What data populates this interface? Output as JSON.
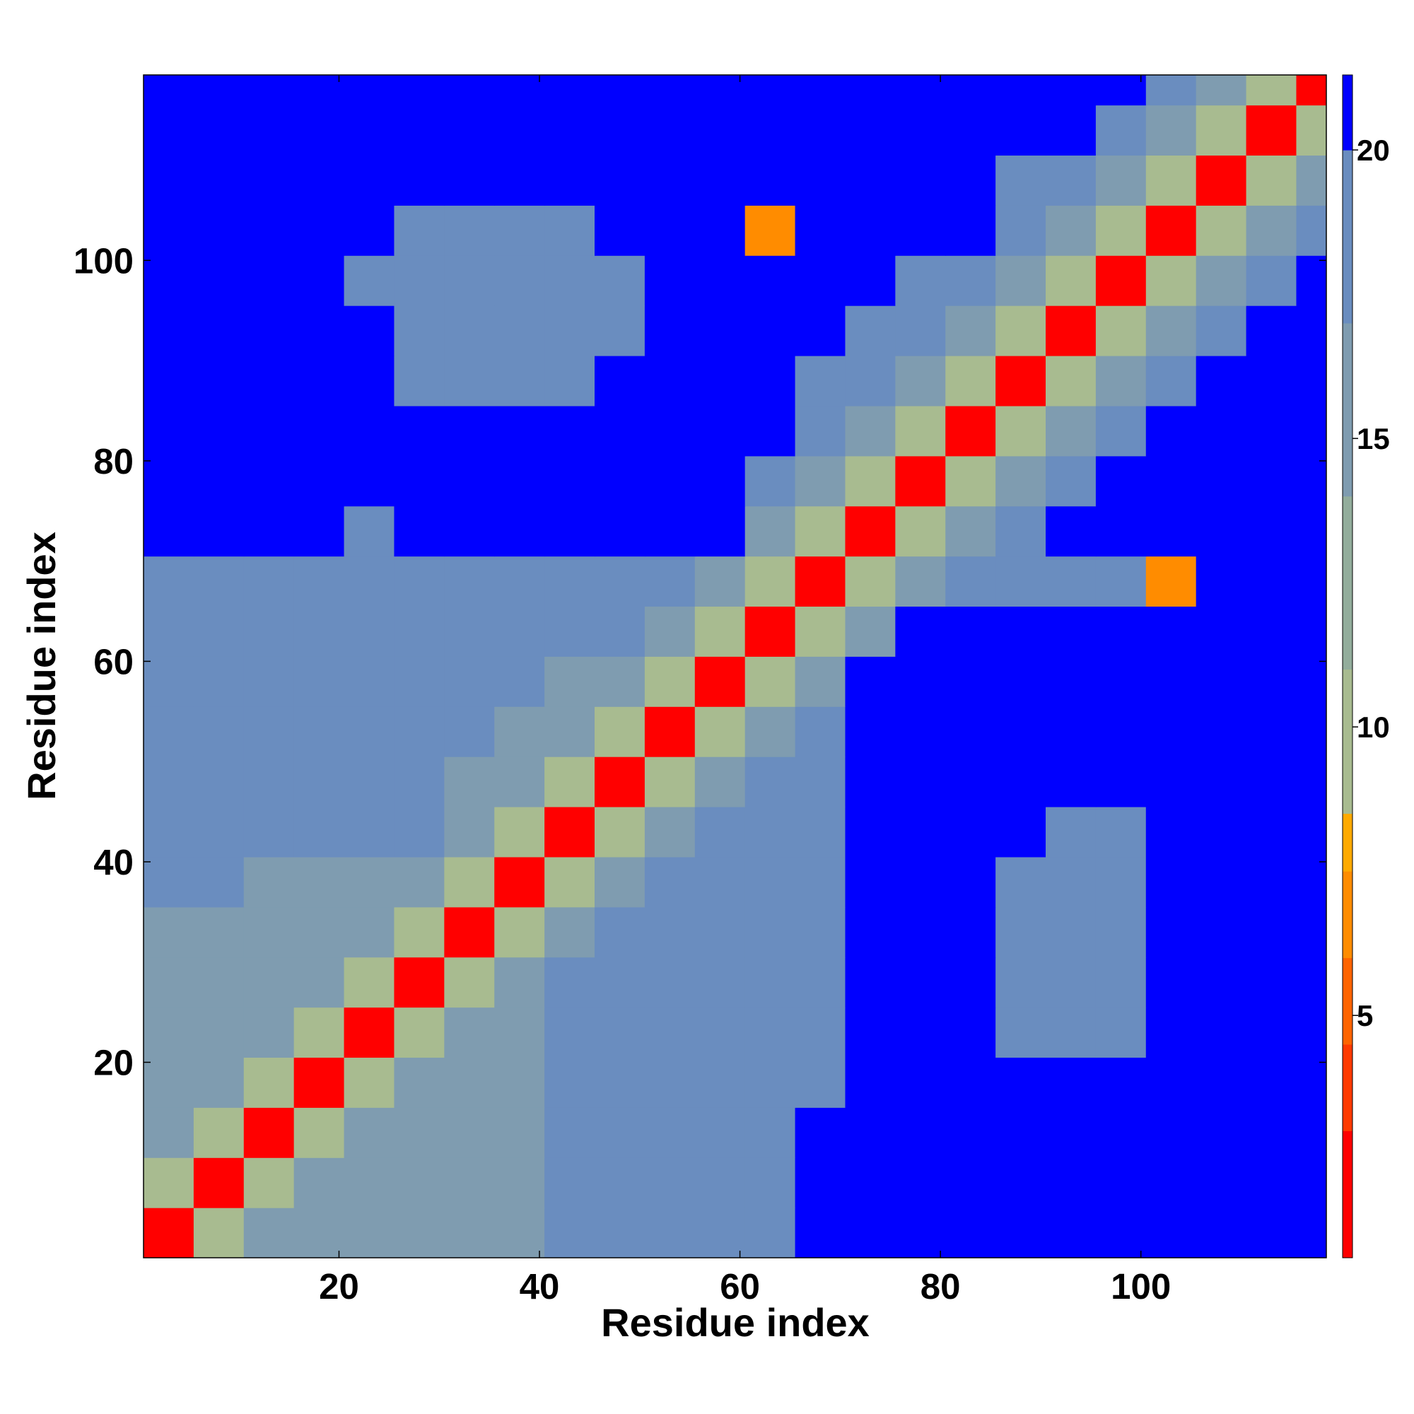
{
  "chart_data": {
    "type": "heatmap",
    "xlabel": "Residue index",
    "ylabel": "Residue index",
    "xlim": [
      0.5,
      118.5
    ],
    "ylim": [
      0.5,
      118.5
    ],
    "xticks": [
      20,
      40,
      60,
      80,
      100
    ],
    "yticks": [
      20,
      40,
      60,
      80,
      100
    ],
    "x": [
      3,
      8,
      13,
      18,
      23,
      28,
      33,
      38,
      43,
      48,
      53,
      58,
      63,
      68,
      73,
      78,
      83,
      88,
      93,
      98,
      103,
      108,
      113,
      118
    ],
    "y": [
      3,
      8,
      13,
      18,
      23,
      28,
      33,
      38,
      43,
      48,
      53,
      58,
      63,
      68,
      73,
      78,
      83,
      88,
      93,
      98,
      103,
      108,
      113,
      118
    ],
    "z": [
      [
        2,
        9,
        15,
        16,
        16,
        16,
        16,
        16,
        19,
        19,
        19,
        19,
        19,
        21,
        21,
        21,
        21,
        21,
        21,
        21,
        21,
        21,
        21,
        21
      ],
      [
        9,
        2,
        9,
        15,
        16,
        16,
        16,
        16,
        17,
        17,
        17,
        17,
        17,
        21,
        21,
        21,
        21,
        21,
        21,
        21,
        21,
        21,
        21,
        21
      ],
      [
        15,
        9,
        2,
        9,
        15,
        16,
        16,
        16,
        17,
        17,
        17,
        17,
        17,
        21,
        21,
        21,
        21,
        21,
        21,
        21,
        21,
        21,
        21,
        21
      ],
      [
        16,
        15,
        9,
        2,
        9,
        15,
        16,
        16,
        17,
        17,
        17,
        17,
        18,
        18,
        21,
        21,
        21,
        21,
        21,
        21,
        21,
        21,
        21,
        21
      ],
      [
        16,
        16,
        15,
        9,
        2,
        9,
        15,
        16,
        18,
        19,
        19,
        19,
        18,
        18,
        21,
        21,
        21,
        18,
        18,
        18,
        21,
        21,
        21,
        21
      ],
      [
        16,
        16,
        16,
        15,
        9,
        2,
        9,
        15,
        17,
        19,
        19,
        19,
        18,
        18,
        21,
        21,
        21,
        17,
        17,
        17,
        21,
        21,
        21,
        21
      ],
      [
        16,
        16,
        16,
        16,
        15,
        9,
        2,
        9,
        15,
        18,
        19,
        19,
        18,
        18,
        21,
        21,
        21,
        17,
        17,
        17,
        21,
        21,
        21,
        21
      ],
      [
        17,
        17,
        16,
        16,
        16,
        15,
        9,
        2,
        9,
        15,
        18,
        19,
        18,
        18,
        21,
        21,
        21,
        19,
        18,
        18,
        21,
        21,
        21,
        21
      ],
      [
        17,
        17,
        17,
        17,
        17,
        17,
        15,
        9,
        2,
        9,
        15,
        18,
        18,
        18,
        21,
        21,
        21,
        21,
        19,
        19,
        21,
        21,
        21,
        21
      ],
      [
        18,
        17,
        17,
        17,
        17,
        17,
        16,
        15,
        9,
        2,
        9,
        15,
        18,
        18,
        21,
        21,
        21,
        21,
        21,
        21,
        21,
        21,
        21,
        21
      ],
      [
        18,
        17,
        17,
        17,
        18,
        18,
        17,
        16,
        15,
        9,
        2,
        9,
        15,
        18,
        21,
        21,
        21,
        21,
        21,
        21,
        21,
        21,
        21,
        21
      ],
      [
        18,
        17,
        17,
        18,
        18,
        18,
        18,
        17,
        16,
        15,
        9,
        2,
        9,
        15,
        21,
        21,
        21,
        21,
        21,
        21,
        21,
        21,
        21,
        21
      ],
      [
        19,
        17,
        17,
        18,
        18,
        18,
        18,
        18,
        18,
        17,
        15,
        9,
        2,
        9,
        15,
        21,
        21,
        21,
        21,
        21,
        21,
        21,
        21,
        21
      ],
      [
        18,
        18,
        18,
        18,
        18,
        18,
        18,
        18,
        18,
        18,
        17,
        15,
        9,
        2,
        9,
        15,
        18,
        18,
        19,
        19,
        6,
        21,
        21,
        21
      ],
      [
        21,
        21,
        21,
        21,
        19,
        21,
        21,
        21,
        21,
        21,
        21,
        21,
        15,
        9,
        2,
        9,
        15,
        18,
        21,
        21,
        21,
        21,
        21,
        21
      ],
      [
        21,
        21,
        21,
        21,
        21,
        21,
        21,
        21,
        21,
        21,
        21,
        21,
        18,
        15,
        9,
        2,
        9,
        15,
        18,
        21,
        21,
        21,
        21,
        21
      ],
      [
        21,
        21,
        21,
        21,
        21,
        21,
        21,
        21,
        21,
        21,
        21,
        21,
        21,
        18,
        15,
        9,
        2,
        9,
        15,
        18,
        21,
        21,
        21,
        21
      ],
      [
        21,
        21,
        21,
        21,
        21,
        19,
        18,
        18,
        19,
        21,
        21,
        21,
        21,
        19,
        18,
        15,
        9,
        2,
        9,
        15,
        18,
        21,
        21,
        21
      ],
      [
        21,
        21,
        21,
        21,
        21,
        18,
        17,
        17,
        18,
        19,
        21,
        21,
        21,
        21,
        19,
        18,
        15,
        9,
        2,
        9,
        15,
        18,
        21,
        21
      ],
      [
        21,
        21,
        21,
        21,
        19,
        18,
        17,
        18,
        18,
        19,
        21,
        21,
        21,
        21,
        21,
        19,
        18,
        15,
        9,
        2,
        9,
        15,
        19,
        21
      ],
      [
        21,
        21,
        21,
        21,
        21,
        19,
        19,
        19,
        19,
        21,
        21,
        21,
        6,
        21,
        21,
        21,
        21,
        18,
        15,
        9,
        2,
        9,
        15,
        19
      ],
      [
        21,
        21,
        21,
        21,
        21,
        21,
        21,
        21,
        21,
        21,
        21,
        21,
        21,
        21,
        21,
        21,
        21,
        19,
        17,
        15,
        9,
        2,
        9,
        15
      ],
      [
        21,
        21,
        21,
        21,
        21,
        21,
        21,
        21,
        21,
        21,
        21,
        21,
        21,
        21,
        21,
        21,
        21,
        21,
        21,
        17,
        15,
        9,
        2,
        9
      ],
      [
        21,
        21,
        21,
        21,
        21,
        21,
        21,
        21,
        21,
        21,
        21,
        21,
        21,
        21,
        21,
        21,
        21,
        21,
        21,
        21,
        17,
        15,
        9,
        2
      ]
    ],
    "zlim": [
      0.8,
      21.3
    ],
    "zticks": [
      5,
      10,
      15,
      20
    ],
    "color_stops": [
      [
        0.8,
        "#ff0000"
      ],
      [
        3,
        "#ff3a00"
      ],
      [
        4.5,
        "#ff6400"
      ],
      [
        6,
        "#ff8c00"
      ],
      [
        7.5,
        "#ffaa00"
      ],
      [
        8.5,
        "#a8bb90"
      ],
      [
        11,
        "#93ad9c"
      ],
      [
        14,
        "#7f9cb0"
      ],
      [
        17,
        "#6a8dbf"
      ],
      [
        20,
        "#0000ff"
      ]
    ]
  }
}
